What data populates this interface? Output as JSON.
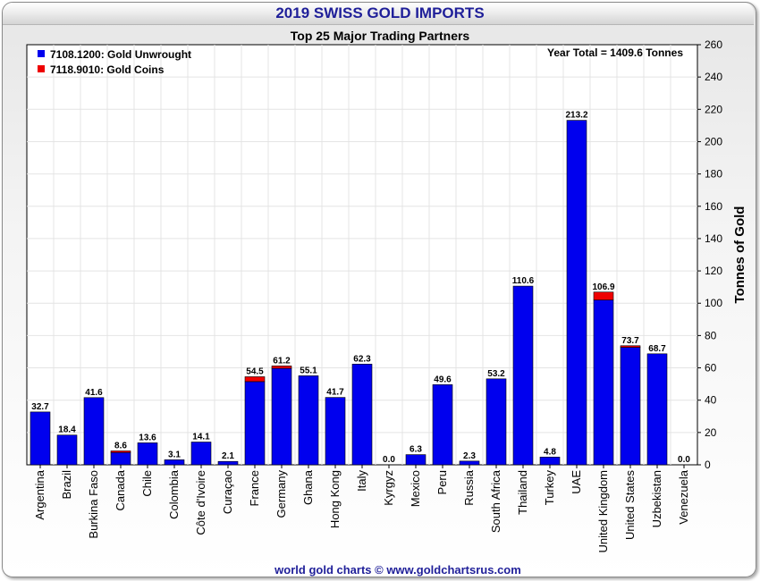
{
  "header": {
    "title": "2019 SWISS GOLD IMPORTS"
  },
  "footer": {
    "credit": "world gold charts © www.goldchartsrus.com"
  },
  "colors": {
    "unwrought": "#0000ee",
    "coins": "#ee0000",
    "title": "#1f1f99",
    "grid": "#ffffff",
    "plot_bg": "#ffffff"
  },
  "chart_data": {
    "type": "bar",
    "stacked": true,
    "title": "Top 25 Major Trading Partners",
    "annotation": "Year Total = 1409.6 Tonnes",
    "ylabel": "Tonnes of Gold",
    "xlabel": "",
    "ylim": [
      0,
      260
    ],
    "yticks": [
      0,
      20,
      40,
      60,
      80,
      100,
      120,
      140,
      160,
      180,
      200,
      220,
      240,
      260
    ],
    "legend_position": "top-left",
    "categories": [
      "Argentina",
      "Brazil",
      "Burkina Faso",
      "Canada",
      "Chile",
      "Colombia",
      "Côte d'Ivoire",
      "Curaçao",
      "France",
      "Germany",
      "Ghana",
      "Hong Kong",
      "Italy",
      "Kyrgyz",
      "Mexico",
      "Peru",
      "Russia",
      "South Africa",
      "Thailand",
      "Turkey",
      "UAE",
      "United Kingdom",
      "United States",
      "Uzbekistan",
      "Venezuela"
    ],
    "series": [
      {
        "name": "7108.1200: Gold Unwrought",
        "color": "#0000ee",
        "values": [
          32.7,
          18.4,
          41.6,
          7.6,
          13.6,
          3.1,
          14.1,
          2.1,
          51.5,
          59.7,
          55.1,
          41.7,
          62.3,
          0.0,
          6.3,
          49.6,
          2.3,
          53.2,
          110.6,
          4.8,
          213.2,
          102.0,
          72.7,
          68.7,
          0.0
        ]
      },
      {
        "name": "7118.9010: Gold Coins",
        "color": "#ee0000",
        "values": [
          0,
          0,
          0,
          1.0,
          0,
          0,
          0,
          0,
          3.0,
          1.5,
          0,
          0,
          0,
          0,
          0,
          0,
          0,
          0,
          0,
          0,
          0,
          4.9,
          1.0,
          0,
          0
        ]
      }
    ],
    "totals": [
      "32.7",
      "18.4",
      "41.6",
      "8.6",
      "13.6",
      "3.1",
      "14.1",
      "2.1",
      "54.5",
      "61.2",
      "55.1",
      "41.7",
      "62.3",
      "0.0",
      "6.3",
      "49.6",
      "2.3",
      "53.2",
      "110.6",
      "4.8",
      "213.2",
      "106.9",
      "73.7",
      "68.7",
      "0.0"
    ]
  }
}
